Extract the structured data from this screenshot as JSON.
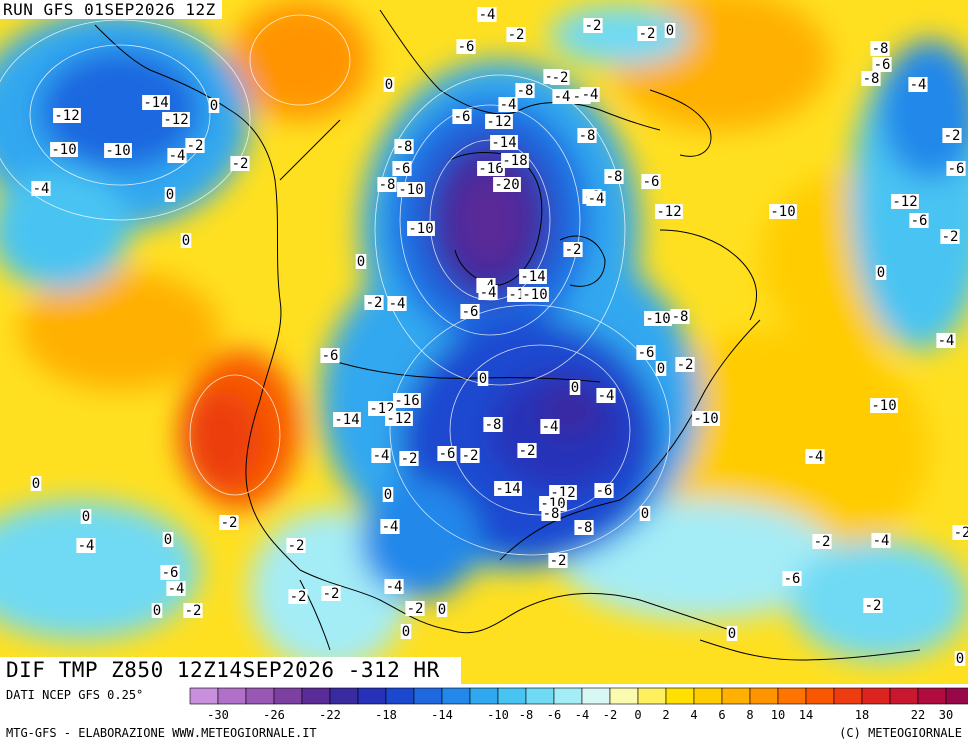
{
  "header": {
    "run_label": "RUN GFS 01SEP2026 12Z"
  },
  "panel_title": "DIF TMP Z850 12Z14SEP2026 -312 HR",
  "footer": {
    "data_source": "DATI NCEP GFS 0.25°",
    "credit_left": "MTG-GFS - ELABORAZIONE WWW.METEOGIORNALE.IT",
    "credit_right": "(C) METEOGIORNALE"
  },
  "legend": {
    "colors": [
      "#c890dc",
      "#b070c8",
      "#9858b4",
      "#7c40a0",
      "#5a2c98",
      "#3a2aa0",
      "#2630b8",
      "#1c48d0",
      "#1f68e0",
      "#2488ea",
      "#30a8f0",
      "#48c4f2",
      "#70daf4",
      "#a4ecf6",
      "#d8f8f6",
      "#fbfbb0",
      "#fff060",
      "#ffe000",
      "#ffcc00",
      "#ffb000",
      "#ff9400",
      "#ff7400",
      "#f85800",
      "#ec3c10",
      "#dc2420",
      "#c81830",
      "#b00c40",
      "#980848"
    ],
    "tick_labels": [
      "-30",
      "-26",
      "-22",
      "-18",
      "-14",
      "-10",
      "-8",
      "-6",
      "-4",
      "-2",
      "0",
      "2",
      "4",
      "6",
      "8",
      "10",
      "14",
      "18",
      "22",
      "30"
    ]
  },
  "value_labels": [
    "-4",
    "-6",
    "-2",
    "-2",
    "0",
    "-6",
    "-4",
    "-4",
    "-2",
    "-8",
    "-6",
    "-2",
    "0",
    "-14",
    "0",
    "-12",
    "-12",
    "-10",
    "-2",
    "-4",
    "-10",
    "-4",
    "-2",
    "0",
    "-8",
    "-6",
    "-8",
    "-10",
    "-12",
    "-2",
    "-14",
    "-4",
    "-16",
    "-18",
    "-20",
    "-8",
    "-8",
    "-6",
    "-10",
    "-8",
    "-12",
    "-10",
    "-12",
    "-6",
    "0",
    "-2",
    "-4",
    "0",
    "-4",
    "-6",
    "-2",
    "-4",
    "-4",
    "-12",
    "-14",
    "-10",
    "-10",
    "-8",
    "-6",
    "0",
    "-6",
    "-2",
    "0",
    "-10",
    "-8",
    "-4",
    "-4",
    "0",
    "-12",
    "-16",
    "-12",
    "-14",
    "-2",
    "-6",
    "-2",
    "0",
    "-14",
    "-12",
    "-10",
    "-8",
    "-6",
    "0",
    "-8",
    "-10",
    "-2",
    "-4",
    "-4",
    "0",
    "-4",
    "-2",
    "0",
    "-2",
    "-4",
    "-2",
    "-2",
    "-4",
    "-2",
    "-6",
    "-4",
    "-6",
    "-4",
    "-2",
    "0",
    "-2",
    "-2",
    "0",
    "-2",
    "0",
    "0",
    "-2",
    "0",
    "-4",
    "-2",
    "-8",
    "-6",
    "-4",
    "-2",
    "-6",
    "-8",
    "0",
    "0"
  ],
  "colors": {
    "land_outline": "#000000",
    "isoline": "#ffffff"
  }
}
